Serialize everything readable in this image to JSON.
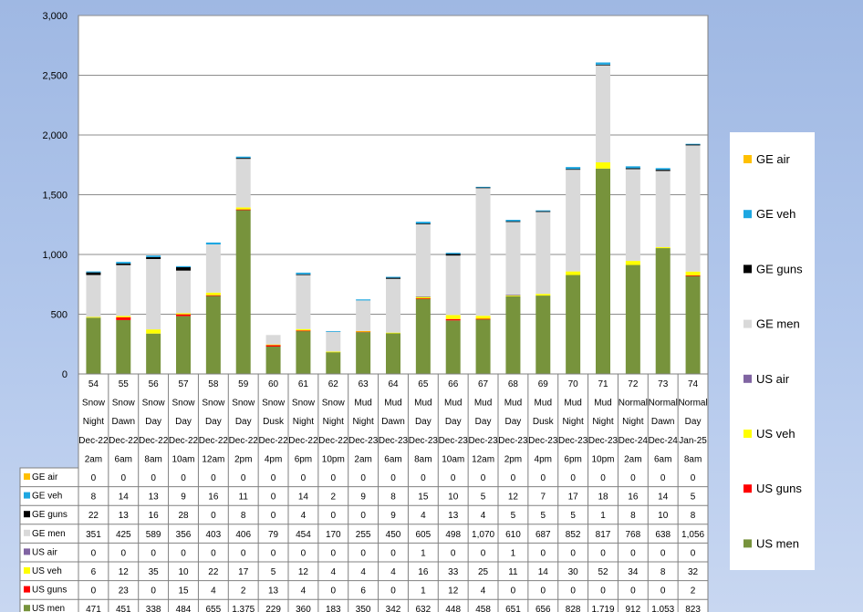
{
  "chart_data": {
    "type": "bar",
    "stacked": true,
    "ylim": [
      0,
      3000
    ],
    "yticks": [
      "0",
      "500",
      "1,000",
      "1,500",
      "2,000",
      "2,500",
      "3,000"
    ],
    "ytick_values": [
      0,
      500,
      1000,
      1500,
      2000,
      2500,
      3000
    ],
    "grid": true,
    "legend_position": "right",
    "categories": [
      "54",
      "55",
      "56",
      "57",
      "58",
      "59",
      "60",
      "61",
      "62",
      "63",
      "64",
      "65",
      "66",
      "67",
      "68",
      "69",
      "70",
      "71",
      "72",
      "73",
      "74"
    ],
    "category_rows": [
      [
        "Snow",
        "Snow",
        "Snow",
        "Snow",
        "Snow",
        "Snow",
        "Snow",
        "Snow",
        "Snow",
        "Mud",
        "Mud",
        "Mud",
        "Mud",
        "Mud",
        "Mud",
        "Mud",
        "Mud",
        "Mud",
        "Normal",
        "Normal",
        "Normal"
      ],
      [
        "Night",
        "Dawn",
        "Day",
        "Day",
        "Day",
        "Day",
        "Dusk",
        "Night",
        "Night",
        "Night",
        "Dawn",
        "Day",
        "Day",
        "Day",
        "Day",
        "Dusk",
        "Night",
        "Night",
        "Night",
        "Dawn",
        "Day"
      ],
      [
        "Dec-22",
        "Dec-22",
        "Dec-22",
        "Dec-22",
        "Dec-22",
        "Dec-22",
        "Dec-22",
        "Dec-22",
        "Dec-22",
        "Dec-23",
        "Dec-23",
        "Dec-23",
        "Dec-23",
        "Dec-23",
        "Dec-23",
        "Dec-23",
        "Dec-23",
        "Dec-23",
        "Dec-24",
        "Dec-24",
        "Jan-25"
      ],
      [
        "2am",
        "6am",
        "8am",
        "10am",
        "12am",
        "2pm",
        "4pm",
        "6pm",
        "10pm",
        "2am",
        "6am",
        "8am",
        "10am",
        "12am",
        "2pm",
        "4pm",
        "6pm",
        "10pm",
        "2am",
        "6am",
        "8am"
      ]
    ],
    "series": [
      {
        "name": "US men",
        "color": "#77933c",
        "values": [
          471,
          451,
          338,
          484,
          655,
          1375,
          229,
          360,
          183,
          350,
          342,
          632,
          448,
          458,
          651,
          656,
          828,
          1719,
          912,
          1053,
          823
        ],
        "labels": [
          "471",
          "451",
          "338",
          "484",
          "655",
          "1,375",
          "229",
          "360",
          "183",
          "350",
          "342",
          "632",
          "448",
          "458",
          "651",
          "656",
          "828",
          "1,719",
          "912",
          "1,053",
          "823"
        ]
      },
      {
        "name": "US guns",
        "color": "#ff0000",
        "values": [
          0,
          23,
          0,
          15,
          4,
          2,
          13,
          4,
          0,
          6,
          0,
          1,
          12,
          4,
          0,
          0,
          0,
          0,
          0,
          0,
          2
        ],
        "labels": [
          "0",
          "23",
          "0",
          "15",
          "4",
          "2",
          "13",
          "4",
          "0",
          "6",
          "0",
          "1",
          "12",
          "4",
          "0",
          "0",
          "0",
          "0",
          "0",
          "0",
          "2"
        ]
      },
      {
        "name": "US veh",
        "color": "#ffff00",
        "values": [
          6,
          12,
          35,
          10,
          22,
          17,
          5,
          12,
          4,
          4,
          4,
          16,
          33,
          25,
          11,
          14,
          30,
          52,
          34,
          8,
          32
        ],
        "labels": [
          "6",
          "12",
          "35",
          "10",
          "22",
          "17",
          "5",
          "12",
          "4",
          "4",
          "4",
          "16",
          "33",
          "25",
          "11",
          "14",
          "30",
          "52",
          "34",
          "8",
          "32"
        ]
      },
      {
        "name": "US air",
        "color": "#8064a2",
        "values": [
          0,
          0,
          0,
          0,
          0,
          0,
          0,
          0,
          0,
          0,
          0,
          1,
          0,
          0,
          1,
          0,
          0,
          0,
          0,
          0,
          0
        ],
        "labels": [
          "0",
          "0",
          "0",
          "0",
          "0",
          "0",
          "0",
          "0",
          "0",
          "0",
          "0",
          "1",
          "0",
          "0",
          "1",
          "0",
          "0",
          "0",
          "0",
          "0",
          "0"
        ]
      },
      {
        "name": "GE men",
        "color": "#d9d9d9",
        "values": [
          351,
          425,
          589,
          356,
          403,
          406,
          79,
          454,
          170,
          255,
          450,
          605,
          498,
          1070,
          610,
          687,
          852,
          817,
          768,
          638,
          1056
        ],
        "labels": [
          "351",
          "425",
          "589",
          "356",
          "403",
          "406",
          "79",
          "454",
          "170",
          "255",
          "450",
          "605",
          "498",
          "1,070",
          "610",
          "687",
          "852",
          "817",
          "768",
          "638",
          "1,056"
        ]
      },
      {
        "name": "GE guns",
        "color": "#000000",
        "values": [
          22,
          13,
          16,
          28,
          0,
          8,
          0,
          4,
          0,
          0,
          9,
          4,
          13,
          4,
          5,
          5,
          5,
          1,
          8,
          10,
          8
        ],
        "labels": [
          "22",
          "13",
          "16",
          "28",
          "0",
          "8",
          "0",
          "4",
          "0",
          "0",
          "9",
          "4",
          "13",
          "4",
          "5",
          "5",
          "5",
          "1",
          "8",
          "10",
          "8"
        ]
      },
      {
        "name": "GE veh",
        "color": "#1ea7e1",
        "values": [
          8,
          14,
          13,
          9,
          16,
          11,
          0,
          14,
          2,
          9,
          8,
          15,
          10,
          5,
          12,
          7,
          17,
          18,
          16,
          14,
          5
        ],
        "labels": [
          "8",
          "14",
          "13",
          "9",
          "16",
          "11",
          "0",
          "14",
          "2",
          "9",
          "8",
          "15",
          "10",
          "5",
          "12",
          "7",
          "17",
          "18",
          "16",
          "14",
          "5"
        ]
      },
      {
        "name": "GE air",
        "color": "#ffc000",
        "values": [
          0,
          0,
          0,
          0,
          0,
          0,
          0,
          0,
          0,
          0,
          0,
          0,
          0,
          0,
          0,
          0,
          0,
          0,
          0,
          0,
          0
        ],
        "labels": [
          "0",
          "0",
          "0",
          "0",
          "0",
          "0",
          "0",
          "0",
          "0",
          "0",
          "0",
          "0",
          "0",
          "0",
          "0",
          "0",
          "0",
          "0",
          "0",
          "0",
          "0"
        ]
      }
    ],
    "table_row_order": [
      "GE air",
      "GE veh",
      "GE guns",
      "GE men",
      "US air",
      "US veh",
      "US guns",
      "US men"
    ],
    "legend_order": [
      "GE air",
      "GE veh",
      "GE guns",
      "GE men",
      "US air",
      "US veh",
      "US guns",
      "US men"
    ]
  }
}
